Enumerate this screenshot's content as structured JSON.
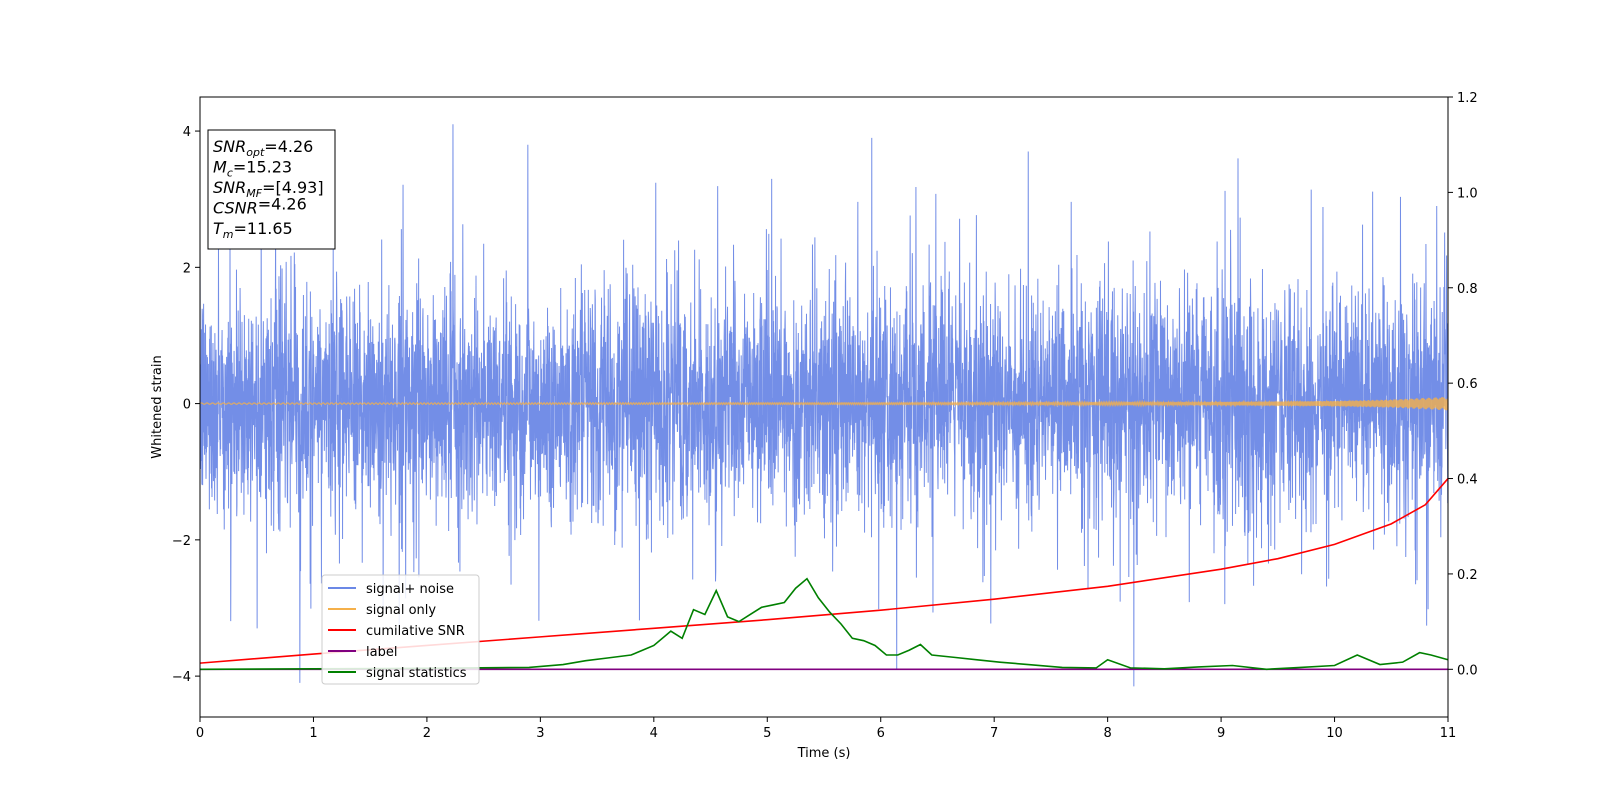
{
  "chart_data": {
    "type": "line",
    "xlabel": "Time (s)",
    "ylabel": "Whitened strain",
    "xlim": [
      0,
      11
    ],
    "ylim_left": [
      -4.6,
      4.5
    ],
    "ylim_right": [
      -0.1,
      1.2
    ],
    "x_ticks": [
      "0",
      "1",
      "2",
      "3",
      "4",
      "5",
      "6",
      "7",
      "8",
      "9",
      "10",
      "11"
    ],
    "y_ticks_left": [
      "−4",
      "−2",
      "0",
      "2",
      "4"
    ],
    "y_ticks_right": [
      "0.0",
      "0.2",
      "0.4",
      "0.6",
      "0.8",
      "1.0",
      "1.2"
    ],
    "grid": false,
    "legend_position": "lower-left",
    "series": [
      {
        "name": "signal+ noise",
        "axis": "left",
        "color": "#6b88e6",
        "description_values": {
          "typical_band": [
            -1.6,
            1.7
          ],
          "spikes": [
            {
              "x": 0.88,
              "y": -4.1
            },
            {
              "x": 2.23,
              "y": 4.1
            },
            {
              "x": 2.89,
              "y": 3.8
            },
            {
              "x": 5.92,
              "y": 3.9
            },
            {
              "x": 6.14,
              "y": -3.9
            },
            {
              "x": 7.3,
              "y": 3.7
            },
            {
              "x": 8.23,
              "y": -4.15
            },
            {
              "x": 9.15,
              "y": 3.6
            },
            {
              "x": 10.9,
              "y": 2.9
            }
          ]
        }
      },
      {
        "name": "signal only",
        "axis": "left",
        "color": "#f5b04a",
        "amplitude_envelope": {
          "x": [
            0,
            6,
            9,
            10,
            10.5,
            11
          ],
          "y": [
            0.01,
            0.015,
            0.025,
            0.04,
            0.06,
            0.1
          ]
        }
      },
      {
        "name": "cumilative SNR",
        "axis": "right",
        "color": "#ff0000",
        "x": [
          0,
          1,
          2,
          3,
          4,
          5,
          6,
          7,
          8,
          9,
          9.5,
          10,
          10.5,
          10.8,
          11
        ],
        "y": [
          0.013,
          0.032,
          0.05,
          0.068,
          0.086,
          0.104,
          0.124,
          0.147,
          0.174,
          0.21,
          0.232,
          0.262,
          0.305,
          0.345,
          0.4
        ]
      },
      {
        "name": "label",
        "axis": "right",
        "color": "#800080",
        "x": [
          0,
          11
        ],
        "y": [
          0.0,
          0.0
        ]
      },
      {
        "name": "signal statistics",
        "axis": "right",
        "color": "#008000",
        "x": [
          0,
          1,
          2,
          2.9,
          3.2,
          3.4,
          3.6,
          3.8,
          3.9,
          4.0,
          4.15,
          4.25,
          4.35,
          4.45,
          4.55,
          4.65,
          4.75,
          4.85,
          4.95,
          5.05,
          5.15,
          5.25,
          5.35,
          5.45,
          5.55,
          5.65,
          5.75,
          5.85,
          5.95,
          6.05,
          6.15,
          6.25,
          6.35,
          6.45,
          6.65,
          6.85,
          7.05,
          7.3,
          7.6,
          7.9,
          8.0,
          8.2,
          8.5,
          8.8,
          9.1,
          9.4,
          9.7,
          10.0,
          10.2,
          10.4,
          10.6,
          10.75,
          10.85,
          11.0
        ],
        "y": [
          0.0,
          0.001,
          0.002,
          0.004,
          0.01,
          0.018,
          0.024,
          0.03,
          0.04,
          0.05,
          0.08,
          0.065,
          0.125,
          0.115,
          0.165,
          0.11,
          0.1,
          0.115,
          0.13,
          0.135,
          0.14,
          0.17,
          0.19,
          0.15,
          0.12,
          0.095,
          0.065,
          0.06,
          0.05,
          0.03,
          0.03,
          0.04,
          0.052,
          0.03,
          0.025,
          0.02,
          0.015,
          0.01,
          0.004,
          0.003,
          0.02,
          0.003,
          0.001,
          0.005,
          0.008,
          0.0,
          0.004,
          0.008,
          0.03,
          0.01,
          0.015,
          0.035,
          0.03,
          0.02
        ]
      }
    ],
    "stats_box": [
      {
        "main": "SNR",
        "sub": "opt",
        "value": "=4.26"
      },
      {
        "main": "M",
        "sub": "c",
        "value": "=15.23"
      },
      {
        "main": "SNR",
        "sub": "MF",
        "value": "=[4.93]"
      },
      {
        "main": "CSNR",
        "sub": "",
        "value": "=4.26"
      },
      {
        "main": "T",
        "sub": "m",
        "value": "=11.65"
      }
    ]
  }
}
